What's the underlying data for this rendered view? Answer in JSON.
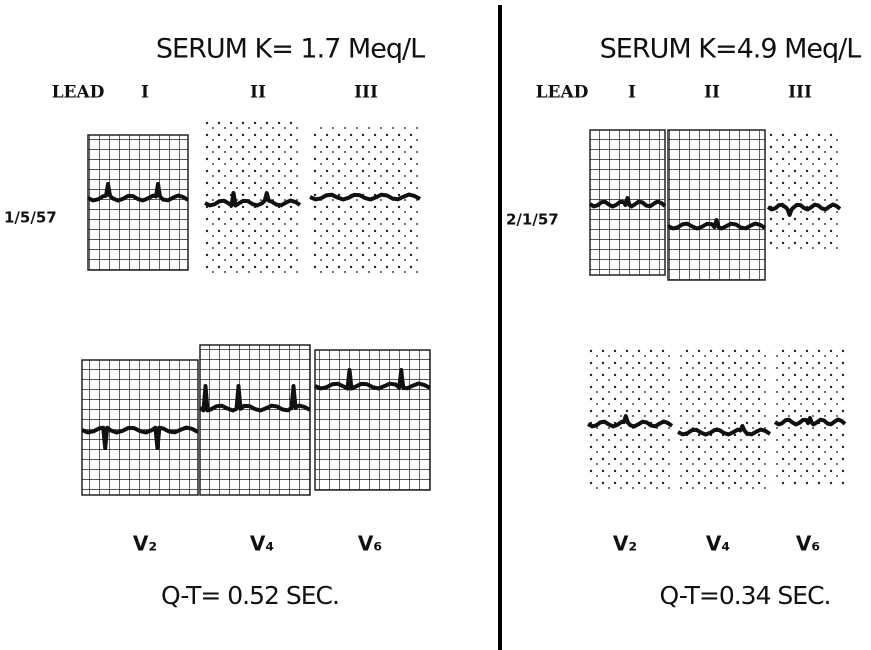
{
  "panels": [
    {
      "title": "SERUM K= 1.7 Meq/L",
      "lead_label": "LEAD",
      "limb_leads": [
        "I",
        "II",
        "III"
      ],
      "date": "1/5/57",
      "chest_leads": [
        "V₂",
        "V₄",
        "V₆"
      ],
      "qt": "Q-T= 0.52 SEC."
    },
    {
      "title": "SERUM K=4.9 Meq/L",
      "lead_label": "LEAD",
      "limb_leads": [
        "I",
        "II",
        "III"
      ],
      "date": "2/1/57",
      "chest_leads": [
        "V₂",
        "V₄",
        "V₆"
      ],
      "qt": "Q-T=0.34 SEC."
    }
  ]
}
